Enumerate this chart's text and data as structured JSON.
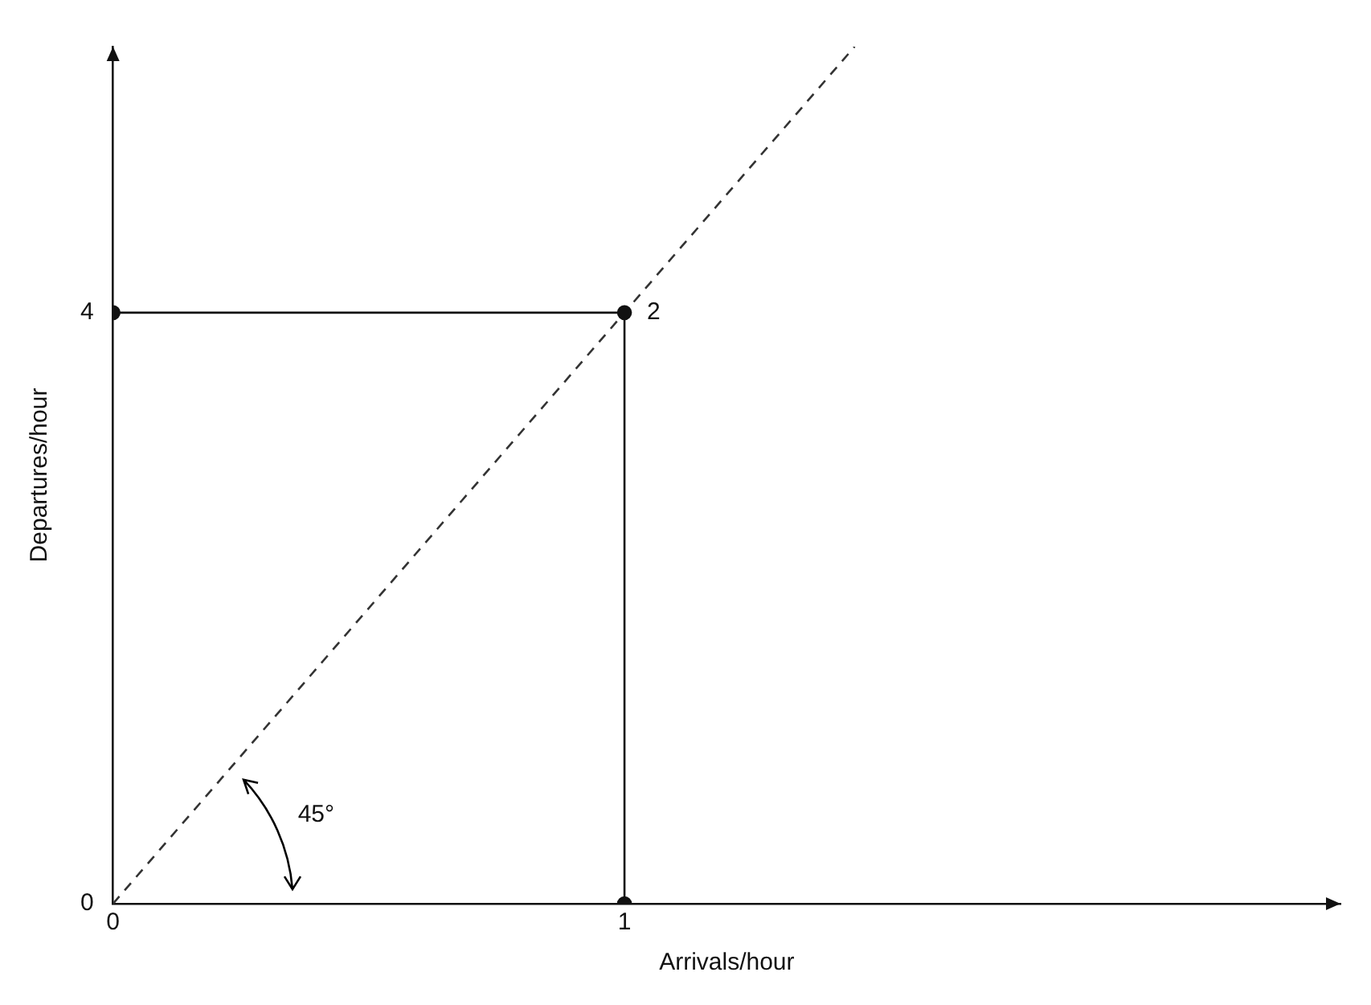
{
  "chart_data": {
    "type": "line",
    "xlabel": "Arrivals/hour",
    "ylabel": "Departures/hour",
    "xlim": [
      0,
      2.4
    ],
    "ylim": [
      0,
      5.8
    ],
    "xticks": [
      0,
      1
    ],
    "yticks": [
      0,
      4
    ],
    "series": [
      {
        "type": "line",
        "color": "#111111",
        "x": [
          0,
          1,
          1
        ],
        "values": [
          4,
          4,
          0
        ],
        "marker": "circle",
        "line_style": "solid"
      },
      {
        "type": "line",
        "color": "#333333",
        "x": [
          0,
          1.45
        ],
        "values": [
          0,
          5.8
        ],
        "marker": "none",
        "line_style": "dashed"
      }
    ],
    "annotations": [
      {
        "text": "2",
        "x": 1,
        "y": 4
      },
      "45°"
    ],
    "grid": false,
    "legend": false
  }
}
